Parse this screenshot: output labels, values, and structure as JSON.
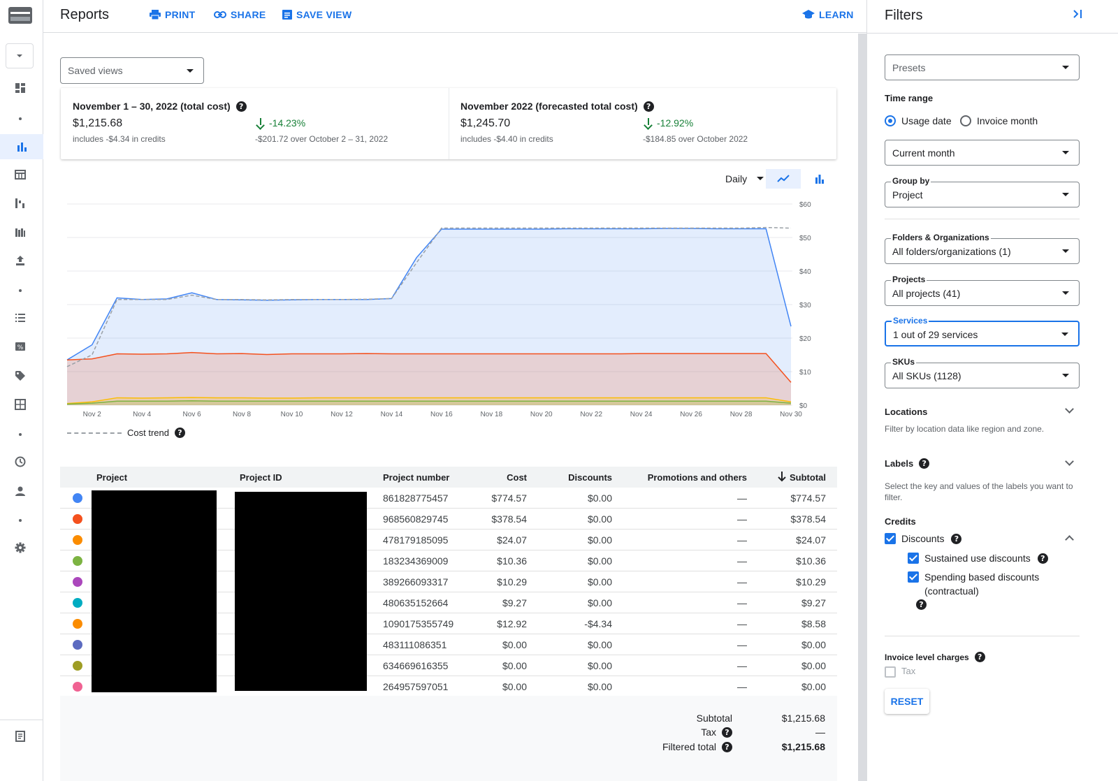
{
  "header": {
    "title": "Reports",
    "print": "PRINT",
    "share": "SHARE",
    "save_view": "SAVE VIEW",
    "learn": "LEARN"
  },
  "saved_views": {
    "label": "Saved views"
  },
  "summary": {
    "current": {
      "heading": "November 1 – 30, 2022 (total cost)",
      "value": "$1,215.68",
      "credits": "includes -$4.34 in credits",
      "pct": "-14.23%",
      "compare": "-$201.72 over October 2 – 31, 2022"
    },
    "forecast": {
      "heading": "November 2022 (forecasted total cost)",
      "value": "$1,245.70",
      "credits": "includes -$4.40 in credits",
      "pct": "-12.92%",
      "compare": "-$184.85 over October 2022"
    }
  },
  "chart_controls": {
    "interval": "Daily",
    "trend_label": "Cost trend"
  },
  "chart_data": {
    "type": "area",
    "x": [
      "Nov 1",
      "Nov 2",
      "Nov 3",
      "Nov 4",
      "Nov 5",
      "Nov 6",
      "Nov 7",
      "Nov 8",
      "Nov 9",
      "Nov 10",
      "Nov 11",
      "Nov 12",
      "Nov 13",
      "Nov 14",
      "Nov 15",
      "Nov 16",
      "Nov 17",
      "Nov 18",
      "Nov 19",
      "Nov 20",
      "Nov 21",
      "Nov 22",
      "Nov 23",
      "Nov 24",
      "Nov 25",
      "Nov 26",
      "Nov 27",
      "Nov 28",
      "Nov 29",
      "Nov 30"
    ],
    "xticks": [
      "Nov 2",
      "Nov 4",
      "Nov 6",
      "Nov 8",
      "Nov 10",
      "Nov 12",
      "Nov 14",
      "Nov 16",
      "Nov 18",
      "Nov 20",
      "Nov 22",
      "Nov 24",
      "Nov 26",
      "Nov 28",
      "Nov 30"
    ],
    "yticks": [
      "$0",
      "$10",
      "$20",
      "$30",
      "$40",
      "$50",
      "$60"
    ],
    "ylim": [
      0,
      60
    ],
    "series": [
      {
        "color": "#4285f4",
        "values": [
          13.5,
          18,
          32,
          31.5,
          31.7,
          33.5,
          31.5,
          31.4,
          31.3,
          31.4,
          31.5,
          31.5,
          31.5,
          31.8,
          44,
          52.5,
          52.5,
          52.5,
          52.5,
          52.5,
          52.6,
          52.6,
          52.6,
          52.6,
          52.7,
          52.7,
          52.6,
          52.6,
          52.6,
          23.5
        ]
      },
      {
        "color": "#f4511e",
        "values": [
          13.5,
          13.8,
          15.3,
          15.2,
          15.3,
          15.7,
          15.3,
          15.4,
          15.1,
          15.3,
          15.3,
          15.3,
          15.4,
          15.3,
          15.3,
          15.3,
          15.3,
          15.3,
          15.3,
          15.3,
          15.3,
          15.3,
          15.3,
          15.4,
          15.4,
          15.4,
          15.4,
          15.4,
          15.4,
          6.8
        ]
      },
      {
        "color": "#fbbc04",
        "values": [
          0.5,
          1,
          2.2,
          2.1,
          2.2,
          2.3,
          2.2,
          2.2,
          2.1,
          2.1,
          2.2,
          2.2,
          2.2,
          2.2,
          2.2,
          2.2,
          2.2,
          2.2,
          2.2,
          2.2,
          2.2,
          2.2,
          2.2,
          2.2,
          2.2,
          2.2,
          2.2,
          2.2,
          2.2,
          1
        ]
      },
      {
        "color": "#7cb342",
        "values": [
          0.3,
          0.6,
          1.2,
          1.2,
          1.2,
          1.3,
          1.2,
          1.2,
          1.2,
          1.2,
          1.2,
          1.2,
          1.2,
          1.2,
          1.2,
          1.2,
          1.2,
          1.2,
          1.2,
          1.2,
          1.2,
          1.2,
          1.2,
          1.2,
          1.2,
          1.2,
          1.2,
          1.2,
          1.2,
          0.6
        ]
      }
    ],
    "trend": [
      11.5,
      15,
      31.5,
      31.5,
      31.5,
      32.8,
      31.5,
      31.5,
      31.4,
      31.5,
      31.5,
      31.5,
      31.6,
      31.8,
      42.5,
      52.8,
      52.8,
      52.8,
      52.8,
      52.8,
      52.8,
      52.8,
      52.8,
      52.8,
      52.8,
      52.8,
      52.8,
      52.8,
      53,
      52.8
    ]
  },
  "table": {
    "headers": {
      "project": "Project",
      "project_id": "Project ID",
      "project_number": "Project number",
      "cost": "Cost",
      "discounts": "Discounts",
      "promotions": "Promotions and others",
      "subtotal": "Subtotal"
    },
    "rows": [
      {
        "color": "#4285f4",
        "number": "861828775457",
        "cost": "$774.57",
        "discounts": "$0.00",
        "promotions": "—",
        "subtotal": "$774.57"
      },
      {
        "color": "#f4511e",
        "number": "968560829745",
        "cost": "$378.54",
        "discounts": "$0.00",
        "promotions": "—",
        "subtotal": "$378.54"
      },
      {
        "color": "#fb8c00",
        "number": "478179185095",
        "cost": "$24.07",
        "discounts": "$0.00",
        "promotions": "—",
        "subtotal": "$24.07"
      },
      {
        "color": "#7cb342",
        "number": "183234369009",
        "cost": "$10.36",
        "discounts": "$0.00",
        "promotions": "—",
        "subtotal": "$10.36"
      },
      {
        "color": "#ab47bc",
        "number": "389266093317",
        "cost": "$10.29",
        "discounts": "$0.00",
        "promotions": "—",
        "subtotal": "$10.29"
      },
      {
        "color": "#00acc1",
        "number": "480635152664",
        "cost": "$9.27",
        "discounts": "$0.00",
        "promotions": "—",
        "subtotal": "$9.27"
      },
      {
        "color": "#fb8c00",
        "number": "1090175355749",
        "cost": "$12.92",
        "discounts": "-$4.34",
        "promotions": "—",
        "subtotal": "$8.58"
      },
      {
        "color": "#5c6bc0",
        "number": "483111086351",
        "cost": "$0.00",
        "discounts": "$0.00",
        "promotions": "—",
        "subtotal": "$0.00"
      },
      {
        "color": "#9e9d24",
        "number": "634669616355",
        "cost": "$0.00",
        "discounts": "$0.00",
        "promotions": "—",
        "subtotal": "$0.00"
      },
      {
        "color": "#f06292",
        "number": "264957597051",
        "cost": "$0.00",
        "discounts": "$0.00",
        "promotions": "—",
        "subtotal": "$0.00"
      }
    ],
    "totals": {
      "subtotal_label": "Subtotal",
      "subtotal": "$1,215.68",
      "tax_label": "Tax",
      "tax": "—",
      "filtered_label": "Filtered total",
      "filtered": "$1,215.68"
    }
  },
  "filters": {
    "title": "Filters",
    "presets": "Presets",
    "time_range_label": "Time range",
    "usage_date": "Usage date",
    "invoice_month": "Invoice month",
    "time_value": "Current month",
    "group_by_label": "Group by",
    "group_by_value": "Project",
    "folders_label": "Folders & Organizations",
    "folders_value": "All folders/organizations (1)",
    "projects_label": "Projects",
    "projects_value": "All projects (41)",
    "services_label": "Services",
    "services_value": "1 out of 29 services",
    "skus_label": "SKUs",
    "skus_value": "All SKUs (1128)",
    "locations_label": "Locations",
    "locations_help": "Filter by location data like region and zone.",
    "labels_label": "Labels",
    "labels_help": "Select the key and values of the labels you want to filter.",
    "credits_label": "Credits",
    "discounts": "Discounts",
    "sustained": "Sustained use discounts",
    "spending_1": "Spending based discounts",
    "spending_2": "(contractual)",
    "invoice_label": "Invoice level charges",
    "tax": "Tax",
    "reset": "RESET"
  },
  "colors": {
    "accent": "#1a73e8",
    "positive": "#188038"
  }
}
